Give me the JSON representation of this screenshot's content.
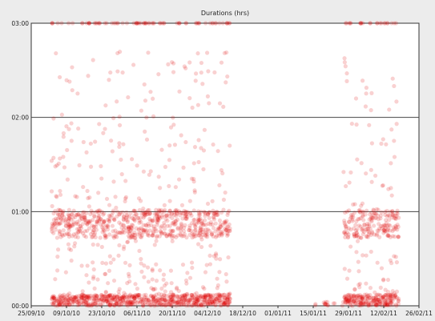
{
  "chart_data": {
    "type": "scatter",
    "title": "Durations (hrs)",
    "xlabel": "",
    "ylabel": "",
    "x_range": [
      "2010-09-25",
      "2011-02-26"
    ],
    "ylim_hours": [
      0,
      3
    ],
    "x_ticks": [
      "25/09/10",
      "09/10/10",
      "23/10/10",
      "06/11/10",
      "20/11/10",
      "04/12/10",
      "18/12/10",
      "01/01/11",
      "15/01/11",
      "29/01/11",
      "12/02/11",
      "26/02/11"
    ],
    "y_ticks": [
      "00:00",
      "01:00",
      "02:00",
      "03:00"
    ],
    "grid": "horizontal",
    "marker_color": "#e00000",
    "marker_alpha": 0.18,
    "point_density_note_free": true,
    "clusters": [
      {
        "start": "2010-10-03",
        "end": "2010-12-12",
        "level": "high"
      },
      {
        "start": "2011-01-14",
        "end": "2011-01-26",
        "level": "low"
      },
      {
        "start": "2011-01-27",
        "end": "2011-02-17",
        "level": "high"
      }
    ],
    "bands_hours": [
      0.0,
      0.9,
      3.0
    ]
  }
}
